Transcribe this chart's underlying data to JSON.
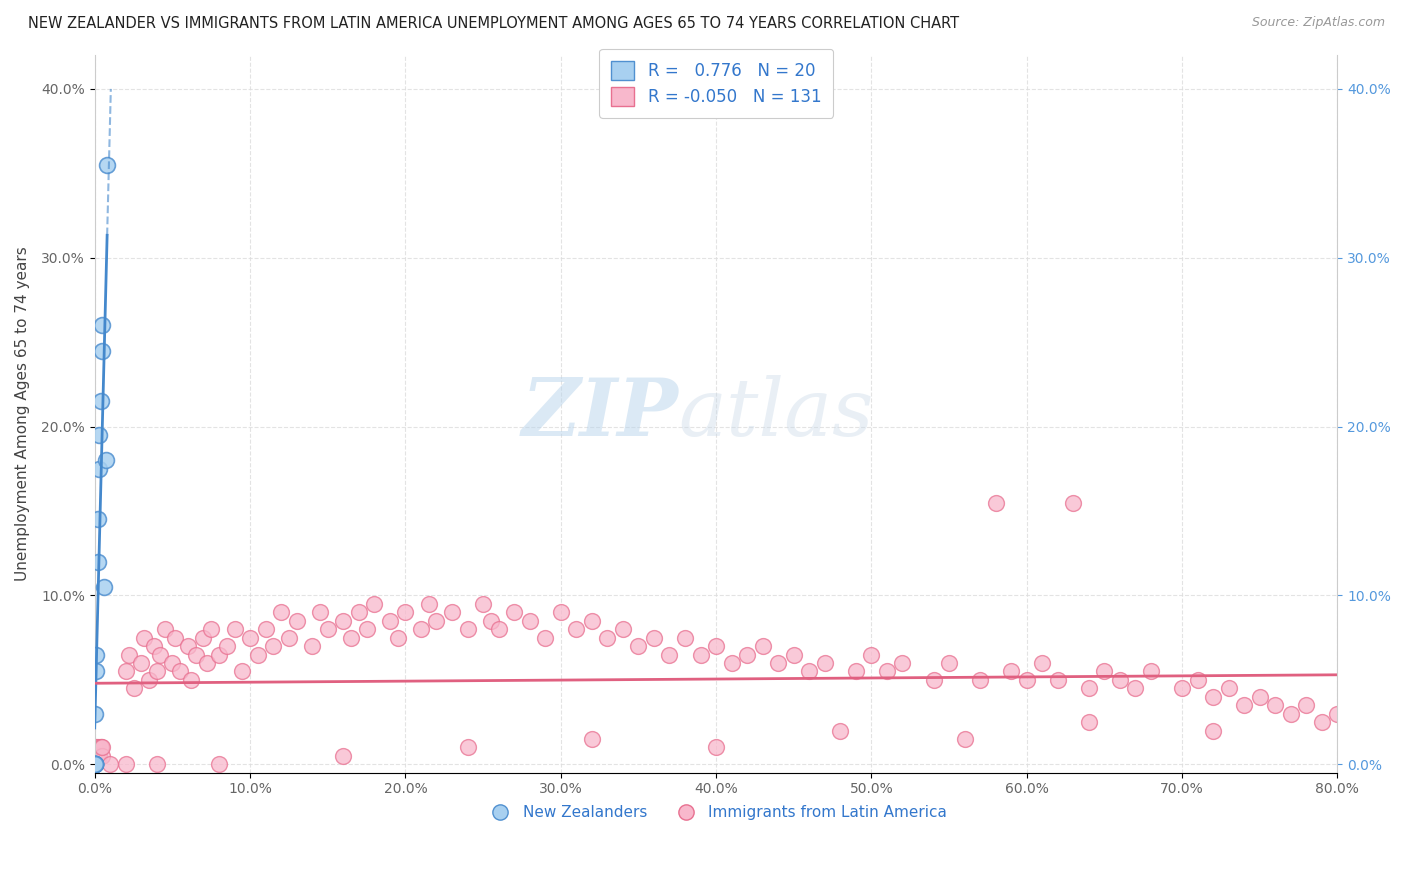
{
  "title": "NEW ZEALANDER VS IMMIGRANTS FROM LATIN AMERICA UNEMPLOYMENT AMONG AGES 65 TO 74 YEARS CORRELATION CHART",
  "source": "Source: ZipAtlas.com",
  "ylabel": "Unemployment Among Ages 65 to 74 years",
  "xlim": [
    0,
    0.8
  ],
  "ylim": [
    -0.005,
    0.42
  ],
  "xticks": [
    0.0,
    0.1,
    0.2,
    0.3,
    0.4,
    0.5,
    0.6,
    0.7,
    0.8
  ],
  "xticklabels": [
    "0.0%",
    "10.0%",
    "20.0%",
    "30.0%",
    "40.0%",
    "50.0%",
    "60.0%",
    "70.0%",
    "80.0%"
  ],
  "yticks": [
    0.0,
    0.1,
    0.2,
    0.3,
    0.4
  ],
  "yticklabels": [
    "0.0%",
    "10.0%",
    "20.0%",
    "30.0%",
    "40.0%"
  ],
  "blue_R": 0.776,
  "blue_N": 20,
  "pink_R": -0.05,
  "pink_N": 131,
  "blue_fill_color": "#A8D0F0",
  "pink_fill_color": "#F8B8CC",
  "blue_edge_color": "#5090D0",
  "pink_edge_color": "#E87090",
  "blue_line_color": "#4488CC",
  "pink_line_color": "#E06080",
  "watermark_zip": "ZIP",
  "watermark_atlas": "atlas",
  "legend_nz": "New Zealanders",
  "legend_la": "Immigrants from Latin America",
  "blue_x": [
    0.0,
    0.0,
    0.0,
    0.0,
    0.0,
    0.0,
    0.0,
    0.0,
    0.001,
    0.001,
    0.002,
    0.002,
    0.003,
    0.003,
    0.004,
    0.005,
    0.005,
    0.006,
    0.007,
    0.008
  ],
  "blue_y": [
    0.0,
    0.0,
    0.0,
    0.0,
    0.0,
    0.0,
    0.0,
    0.03,
    0.055,
    0.065,
    0.12,
    0.145,
    0.175,
    0.195,
    0.215,
    0.245,
    0.26,
    0.105,
    0.18,
    0.355
  ],
  "pink_x": [
    0.0,
    0.0,
    0.0,
    0.0,
    0.0,
    0.0,
    0.0,
    0.0,
    0.0,
    0.0,
    0.001,
    0.001,
    0.001,
    0.002,
    0.002,
    0.003,
    0.004,
    0.004,
    0.005,
    0.005,
    0.02,
    0.022,
    0.025,
    0.03,
    0.032,
    0.035,
    0.038,
    0.04,
    0.042,
    0.045,
    0.05,
    0.052,
    0.055,
    0.06,
    0.062,
    0.065,
    0.07,
    0.072,
    0.075,
    0.08,
    0.085,
    0.09,
    0.095,
    0.1,
    0.105,
    0.11,
    0.115,
    0.12,
    0.125,
    0.13,
    0.14,
    0.145,
    0.15,
    0.16,
    0.165,
    0.17,
    0.175,
    0.18,
    0.19,
    0.195,
    0.2,
    0.21,
    0.215,
    0.22,
    0.23,
    0.24,
    0.25,
    0.255,
    0.26,
    0.27,
    0.28,
    0.29,
    0.3,
    0.31,
    0.32,
    0.33,
    0.34,
    0.35,
    0.36,
    0.37,
    0.38,
    0.39,
    0.4,
    0.41,
    0.42,
    0.43,
    0.44,
    0.45,
    0.46,
    0.47,
    0.49,
    0.5,
    0.51,
    0.52,
    0.54,
    0.55,
    0.57,
    0.58,
    0.59,
    0.6,
    0.61,
    0.62,
    0.63,
    0.64,
    0.65,
    0.66,
    0.67,
    0.68,
    0.7,
    0.71,
    0.72,
    0.73,
    0.74,
    0.75,
    0.76,
    0.77,
    0.78,
    0.79,
    0.8,
    0.72,
    0.64,
    0.56,
    0.48,
    0.4,
    0.32,
    0.24,
    0.16,
    0.08,
    0.04,
    0.02,
    0.01
  ],
  "pink_y": [
    0.0,
    0.0,
    0.0,
    0.0,
    0.0,
    0.0,
    0.005,
    0.005,
    0.005,
    0.01,
    0.005,
    0.005,
    0.01,
    0.005,
    0.01,
    0.005,
    0.01,
    0.01,
    0.005,
    0.01,
    0.055,
    0.065,
    0.045,
    0.06,
    0.075,
    0.05,
    0.07,
    0.055,
    0.065,
    0.08,
    0.06,
    0.075,
    0.055,
    0.07,
    0.05,
    0.065,
    0.075,
    0.06,
    0.08,
    0.065,
    0.07,
    0.08,
    0.055,
    0.075,
    0.065,
    0.08,
    0.07,
    0.09,
    0.075,
    0.085,
    0.07,
    0.09,
    0.08,
    0.085,
    0.075,
    0.09,
    0.08,
    0.095,
    0.085,
    0.075,
    0.09,
    0.08,
    0.095,
    0.085,
    0.09,
    0.08,
    0.095,
    0.085,
    0.08,
    0.09,
    0.085,
    0.075,
    0.09,
    0.08,
    0.085,
    0.075,
    0.08,
    0.07,
    0.075,
    0.065,
    0.075,
    0.065,
    0.07,
    0.06,
    0.065,
    0.07,
    0.06,
    0.065,
    0.055,
    0.06,
    0.055,
    0.065,
    0.055,
    0.06,
    0.05,
    0.06,
    0.05,
    0.155,
    0.055,
    0.05,
    0.06,
    0.05,
    0.155,
    0.045,
    0.055,
    0.05,
    0.045,
    0.055,
    0.045,
    0.05,
    0.04,
    0.045,
    0.035,
    0.04,
    0.035,
    0.03,
    0.035,
    0.025,
    0.03,
    0.02,
    0.025,
    0.015,
    0.02,
    0.01,
    0.015,
    0.01,
    0.005,
    0.0,
    0.0,
    0.0,
    0.0
  ]
}
